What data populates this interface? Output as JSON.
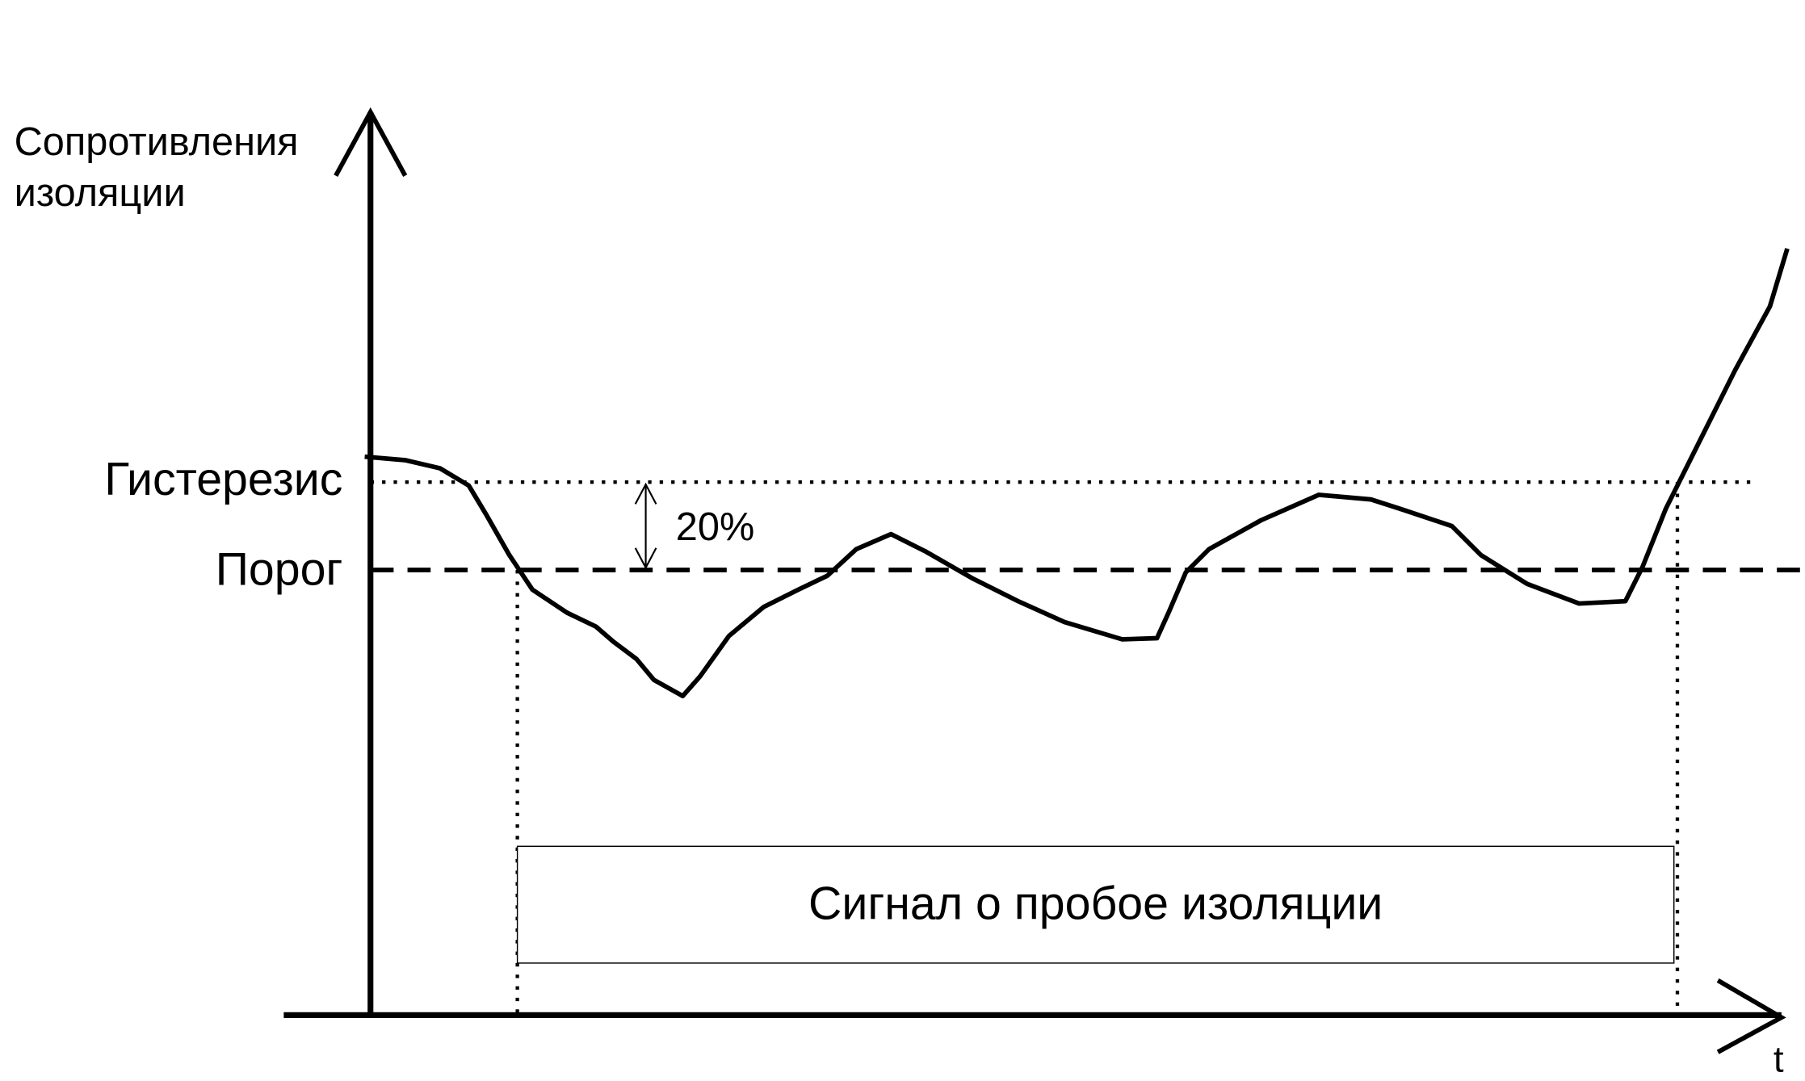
{
  "y_axis_label": [
    "Сопротивления",
    "изоляции"
  ],
  "hysteresis_label": "Гистерезис",
  "threshold_label": "Порог",
  "hysteresis_percent": "20%",
  "signal_box": "Сигнал о пробое изоляции",
  "x_axis_label": "t"
}
